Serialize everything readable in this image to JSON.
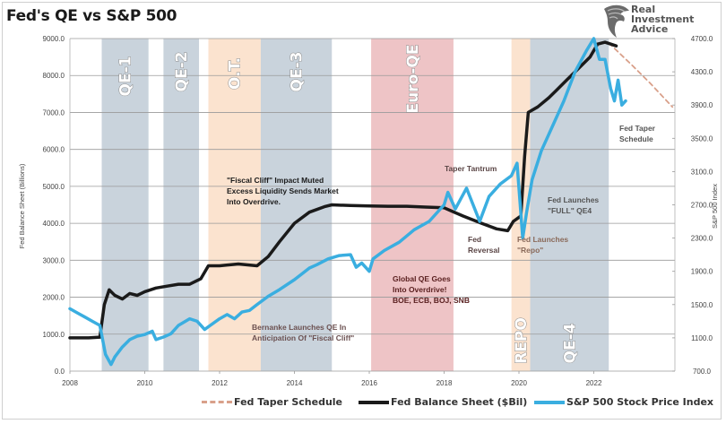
{
  "title": "Fed's QE vs S&P 500",
  "logo": {
    "icon": "eagle-head-icon",
    "lines": [
      "Real",
      "Investment",
      "Advice"
    ]
  },
  "chart_data": {
    "type": "line",
    "title": "Fed's QE vs S&P 500",
    "xlabel": "",
    "ylabel": "Fed Balance Sheet (Billions)",
    "y2label": "S&P 500 Index",
    "xlim": [
      2008,
      2024.1
    ],
    "ylim": [
      0,
      9000
    ],
    "y2lim": [
      700,
      4700
    ],
    "grid": true,
    "x_ticks": [
      "2008",
      "2010",
      "2012",
      "2014",
      "2016",
      "2018",
      "2020",
      "2022"
    ],
    "y_ticks": [
      "0.0",
      "1000.0",
      "2000.0",
      "3000.0",
      "4000.0",
      "5000.0",
      "6000.0",
      "7000.0",
      "8000.0",
      "9000.0"
    ],
    "y2_ticks": [
      "700.0",
      "1100.0",
      "1500.0",
      "1900.0",
      "2300.0",
      "2700.0",
      "3100.0",
      "3500.0",
      "3900.0",
      "4300.0",
      "4700.0"
    ],
    "legend_position": "bottom",
    "bands": [
      {
        "label": "QE-1",
        "start": 2008.85,
        "end": 2010.1,
        "color": "#c9d3dc"
      },
      {
        "label": "QE-2",
        "start": 2010.5,
        "end": 2011.45,
        "color": "#c9d3dc"
      },
      {
        "label": "O.T.",
        "start": 2011.7,
        "end": 2013.1,
        "color": "#fbe3cf"
      },
      {
        "label": "QE-3",
        "start": 2013.1,
        "end": 2015.0,
        "color": "#c9d3dc"
      },
      {
        "label": "Euro-QE",
        "start": 2016.05,
        "end": 2018.25,
        "color": "#eec4c6"
      },
      {
        "label": "REPO",
        "start": 2019.8,
        "end": 2020.3,
        "color": "#fbe3cf"
      },
      {
        "label": "QE-4",
        "start": 2020.3,
        "end": 2022.4,
        "color": "#c9d3dc"
      }
    ],
    "series": [
      {
        "name": "Fed Taper Schedule",
        "axis": "left",
        "color": "#d9a08a",
        "style": "dashed",
        "x": [
          2022.4,
          2023.0,
          2023.5,
          2024.1
        ],
        "y": [
          8880,
          8300,
          7800,
          7150
        ]
      },
      {
        "name": "Fed Balance Sheet ($Bil)",
        "axis": "left",
        "color": "#1a1a1a",
        "style": "solid",
        "x": [
          2008.0,
          2008.5,
          2008.8,
          2008.92,
          2009.05,
          2009.2,
          2009.4,
          2009.6,
          2009.8,
          2010.0,
          2010.3,
          2010.6,
          2010.9,
          2011.2,
          2011.5,
          2011.7,
          2012.0,
          2012.5,
          2013.0,
          2013.3,
          2013.6,
          2014.0,
          2014.4,
          2014.8,
          2015.0,
          2015.5,
          2016.0,
          2016.5,
          2017.0,
          2017.5,
          2018.0,
          2018.5,
          2019.0,
          2019.4,
          2019.7,
          2019.85,
          2020.05,
          2020.15,
          2020.25,
          2020.5,
          2020.8,
          2021.0,
          2021.3,
          2021.6,
          2021.9,
          2022.1,
          2022.3,
          2022.6
        ],
        "y": [
          900,
          900,
          920,
          1800,
          2200,
          2050,
          1950,
          2100,
          2050,
          2150,
          2250,
          2300,
          2350,
          2350,
          2500,
          2850,
          2850,
          2900,
          2850,
          3100,
          3500,
          4000,
          4300,
          4450,
          4500,
          4480,
          4470,
          4460,
          4460,
          4440,
          4420,
          4200,
          4000,
          3850,
          3800,
          4050,
          4200,
          5800,
          7000,
          7150,
          7400,
          7600,
          7900,
          8200,
          8500,
          8850,
          8900,
          8800
        ]
      },
      {
        "name": "S&P 500 Stock Price Index",
        "axis": "right",
        "color": "#3aaee0",
        "style": "solid",
        "x": [
          2008.0,
          2008.2,
          2008.4,
          2008.6,
          2008.8,
          2008.95,
          2009.1,
          2009.2,
          2009.4,
          2009.6,
          2009.8,
          2010.0,
          2010.2,
          2010.3,
          2010.5,
          2010.7,
          2010.9,
          2011.2,
          2011.4,
          2011.6,
          2011.75,
          2012.0,
          2012.2,
          2012.4,
          2012.6,
          2012.8,
          2013.0,
          2013.3,
          2013.6,
          2014.0,
          2014.2,
          2014.4,
          2014.6,
          2014.9,
          2015.2,
          2015.5,
          2015.65,
          2015.8,
          2016.0,
          2016.1,
          2016.4,
          2016.8,
          2017.2,
          2017.6,
          2018.0,
          2018.1,
          2018.3,
          2018.6,
          2018.95,
          2019.2,
          2019.5,
          2019.8,
          2019.95,
          2020.1,
          2020.2,
          2020.35,
          2020.6,
          2020.9,
          2021.2,
          2021.5,
          2021.8,
          2022.0,
          2022.15,
          2022.3,
          2022.45,
          2022.55,
          2022.65,
          2022.75,
          2022.85
        ],
        "y": [
          1450,
          1400,
          1350,
          1300,
          1250,
          900,
          780,
          870,
          990,
          1080,
          1120,
          1140,
          1180,
          1080,
          1110,
          1150,
          1250,
          1330,
          1300,
          1200,
          1250,
          1330,
          1380,
          1330,
          1410,
          1430,
          1500,
          1600,
          1680,
          1800,
          1870,
          1940,
          1980,
          2050,
          2090,
          2100,
          1950,
          2000,
          1900,
          2050,
          2150,
          2250,
          2400,
          2500,
          2700,
          2850,
          2650,
          2900,
          2500,
          2800,
          2950,
          3050,
          3200,
          2300,
          2600,
          3000,
          3350,
          3650,
          3950,
          4300,
          4550,
          4700,
          4450,
          4450,
          4100,
          3950,
          4200,
          3900,
          3950
        ]
      }
    ],
    "annotations": [
      {
        "text": [
          "\"Fiscal Cliff\" Impact Muted",
          "Excess Liquidity Sends Market",
          "Into Overdrive."
        ],
        "color": "#1a1a1a"
      },
      {
        "text": [
          "Bernanke Launches QE In",
          "Anticipation Of \"Fiscal Cliff\""
        ],
        "color": "#6b5050"
      },
      {
        "text": [
          "Global QE Goes",
          "Into Overdrive!",
          "BOE, ECB, BOJ, SNB"
        ],
        "color": "#5a2020"
      },
      {
        "text": [
          "Taper Tantrum"
        ],
        "color": "#5a4545"
      },
      {
        "text": [
          "Fed",
          "Reversal"
        ],
        "color": "#5a4545"
      },
      {
        "text": [
          "Fed Launches",
          "\"Repo\""
        ],
        "color": "#8a6a5a"
      },
      {
        "text": [
          "Fed Launches",
          "\"FULL\" QE4"
        ],
        "color": "#555555"
      },
      {
        "text": [
          "Fed Taper",
          "Schedule"
        ],
        "color": "#555555"
      }
    ]
  },
  "legend": {
    "items": [
      {
        "label": "Fed Taper Schedule"
      },
      {
        "label": "Fed Balance Sheet ($Bil)"
      },
      {
        "label": "S&P 500 Stock Price Index"
      }
    ]
  }
}
